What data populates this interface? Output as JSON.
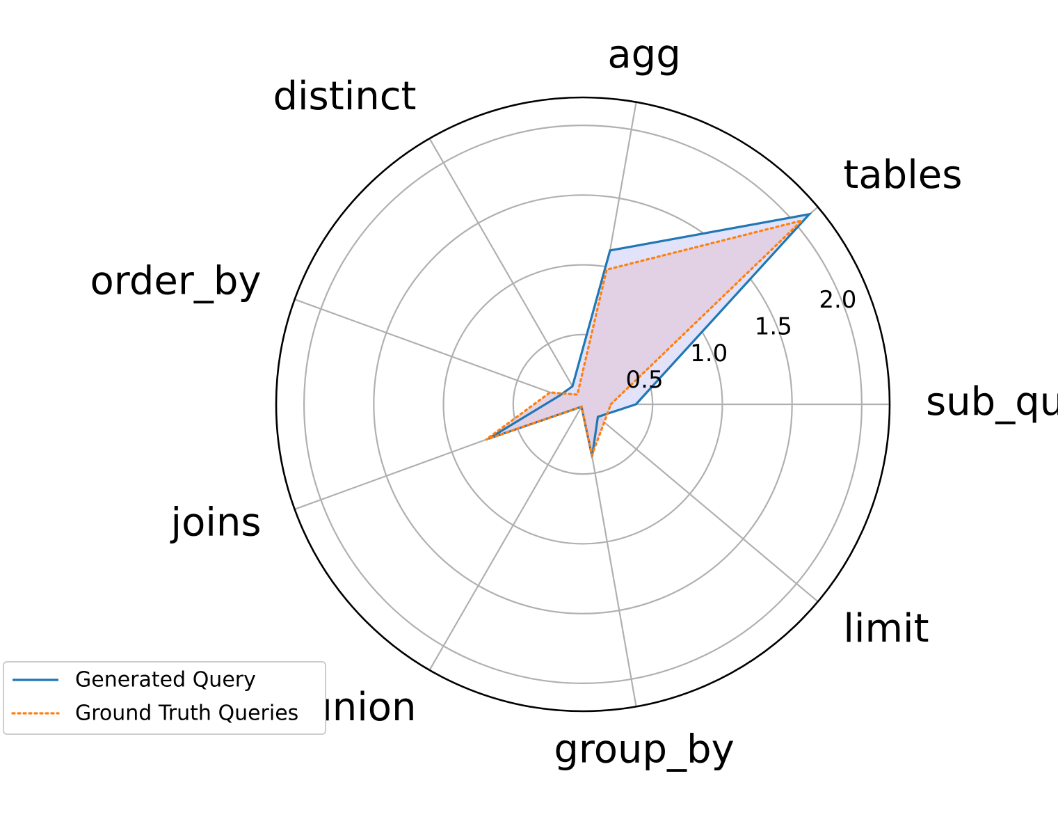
{
  "chart_data": {
    "type": "radar",
    "title": "",
    "categories": [
      "sub_queries",
      "tables",
      "agg",
      "distinct",
      "order_by",
      "joins",
      "union",
      "group_by",
      "limit"
    ],
    "rlim": [
      0,
      2.2
    ],
    "r_ticks": [
      "0.5",
      "1.0",
      "1.5",
      "2.0"
    ],
    "r_tick_values": [
      0.5,
      1.0,
      1.5,
      2.0
    ],
    "grid": true,
    "legend_position": "lower-left",
    "series": [
      {
        "name": "Generated Query",
        "color": "#1f77b4",
        "line_style": "solid",
        "fill": "#e2e2fa",
        "values": [
          0.38,
          2.12,
          1.12,
          0.15,
          0.18,
          0.72,
          0.02,
          0.38,
          0.14
        ]
      },
      {
        "name": "Ground Truth Queries",
        "color": "#ff7f0e",
        "line_style": "dotted",
        "fill": "#e2cce0",
        "values": [
          0.2,
          2.05,
          0.98,
          0.08,
          0.25,
          0.74,
          0.02,
          0.37,
          0.2
        ]
      }
    ]
  }
}
